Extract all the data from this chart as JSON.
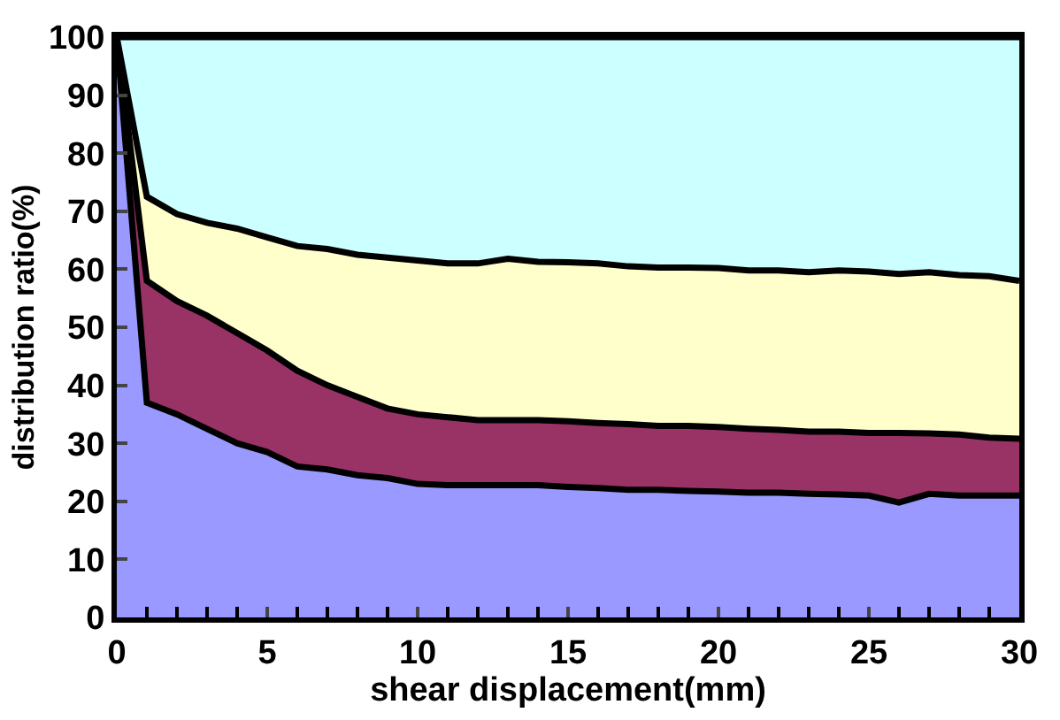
{
  "chart_data": {
    "type": "area",
    "stacked": true,
    "xlabel": "shear displacement(mm)",
    "ylabel": "distribution ratio(%)",
    "x": [
      0,
      1,
      2,
      3,
      4,
      5,
      6,
      7,
      8,
      9,
      10,
      11,
      12,
      13,
      14,
      15,
      16,
      17,
      18,
      19,
      20,
      21,
      22,
      23,
      24,
      25,
      26,
      27,
      28,
      29,
      30
    ],
    "series": [
      {
        "color": "#9999ff",
        "values": [
          100,
          37,
          35,
          32.5,
          30,
          28.5,
          26,
          25.5,
          24.5,
          24,
          23,
          22.8,
          22.8,
          22.8,
          22.8,
          22.5,
          22.3,
          22,
          22,
          21.8,
          21.7,
          21.5,
          21.5,
          21.3,
          21.2,
          21,
          19.8,
          21.3,
          21,
          21,
          21
        ]
      },
      {
        "color": "#993366",
        "values": [
          0,
          21,
          19.5,
          19.5,
          19,
          17.5,
          16.5,
          14.5,
          13.5,
          12,
          12,
          11.7,
          11.2,
          11.2,
          11.2,
          11.3,
          11.2,
          11.3,
          11,
          11.2,
          11.1,
          11,
          10.8,
          10.7,
          10.8,
          10.8,
          12,
          10.4,
          10.5,
          10,
          9.8
        ]
      },
      {
        "color": "#ffffcc",
        "values": [
          0,
          14.5,
          15,
          16,
          18,
          19.5,
          21.5,
          23.5,
          24.5,
          26,
          26.5,
          26.5,
          27,
          27.8,
          27.3,
          27.4,
          27.5,
          27.2,
          27.3,
          27.3,
          27.4,
          27.3,
          27.5,
          27.5,
          27.8,
          27.8,
          27.4,
          27.8,
          27.5,
          27.8,
          27.2
        ]
      },
      {
        "color": "#ccffff",
        "values": [
          0,
          27.5,
          30.5,
          32,
          33,
          34.5,
          36,
          36.5,
          37.5,
          38,
          38.5,
          39,
          39,
          38.2,
          38.7,
          38.8,
          39,
          39.5,
          39.7,
          39.7,
          39.8,
          40.2,
          40.2,
          40.5,
          40.2,
          40.4,
          40.8,
          40.5,
          41,
          41.2,
          42
        ]
      }
    ],
    "xlim": [
      0,
      30
    ],
    "xticks": [
      0,
      5,
      10,
      15,
      20,
      25,
      30
    ],
    "ylim": [
      0,
      100
    ],
    "yticks": [
      0,
      10,
      20,
      30,
      40,
      50,
      60,
      70,
      80,
      90,
      100
    ]
  }
}
